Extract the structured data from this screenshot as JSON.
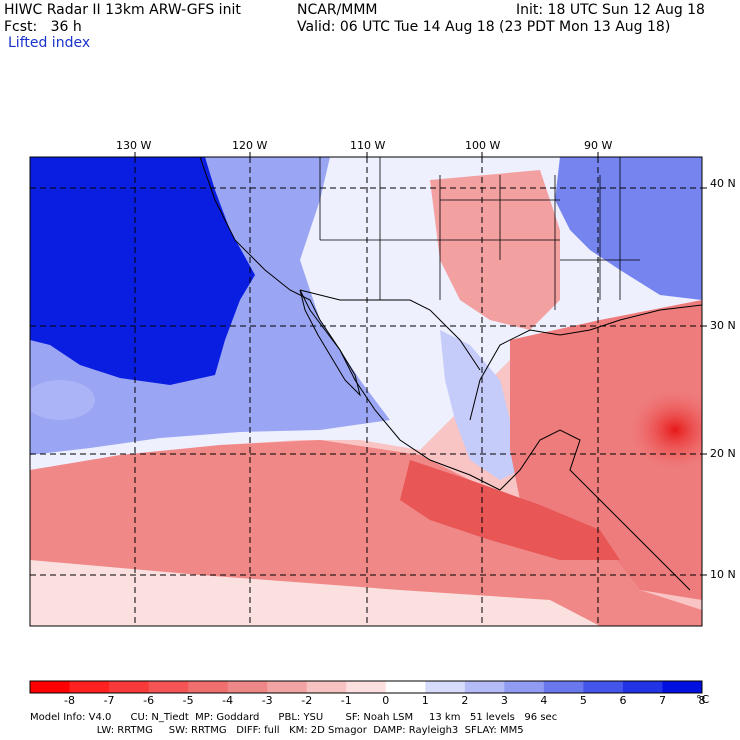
{
  "header": {
    "model_line": "HIWC Radar II 13km ARW-GFS init",
    "org": "NCAR/MMM",
    "init": "Init: 18 UTC Sun 12 Aug 18",
    "fcst": "Fcst:   36 h",
    "valid": "Valid: 06 UTC Tue 14 Aug 18 (23 PDT Mon 13 Aug 18)",
    "field": "Lifted index"
  },
  "map": {
    "lon_labels": [
      "130 W",
      "120 W",
      "110 W",
      "100 W",
      "90 W"
    ],
    "lat_labels": [
      "40 N",
      "30 N",
      "20 N",
      "10 N"
    ],
    "colors": {
      "strong_blue": "#0018e0",
      "mid_blue": "#6f7ff0",
      "light_blue": "#c8d0f8",
      "white": "#ffffff",
      "light_red": "#f9c8c8",
      "mid_red": "#f08c8c",
      "strong_red": "#e83030"
    }
  },
  "colorbar": {
    "ticks": [
      "-8",
      "-7",
      "-6",
      "-5",
      "-4",
      "-3",
      "-2",
      "-1",
      "0",
      "1",
      "2",
      "3",
      "4",
      "5",
      "6",
      "7",
      "8"
    ],
    "unit": "°C",
    "colors": [
      "#ff0000",
      "#ff2020",
      "#f83a3a",
      "#f45454",
      "#f06e6e",
      "#ee8888",
      "#f2a4a4",
      "#f7c2c2",
      "#fce0e0",
      "#ffffff",
      "#d8dcfb",
      "#b4bcf7",
      "#909bf2",
      "#6a78ee",
      "#4455ea",
      "#2235e6",
      "#0010e0"
    ]
  },
  "footer": {
    "line1": "Model Info: V4.0      CU: N_Tiedt  MP: Goddard      PBL: YSU       SF: Noah LSM     13 km   51 levels   96 sec",
    "line2": "                     LW: RRTMG     SW: RRTMG   DIFF: full   KM: 2D Smagor  DAMP: Rayleigh3  SFLAY: MM5"
  }
}
